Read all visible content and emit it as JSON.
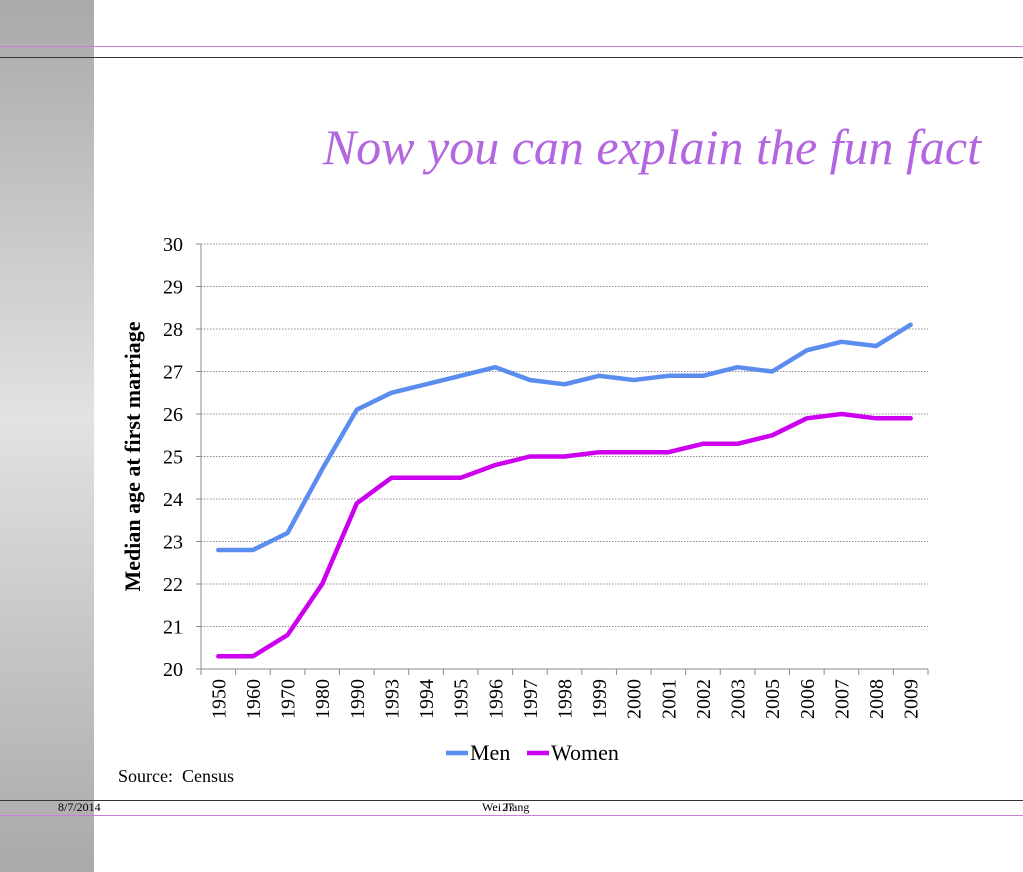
{
  "slide": {
    "title": "Now you can explain the fun fact",
    "source": "Source:  Census",
    "footer_date": "8/7/2014",
    "footer_author": "Wei Jiang",
    "footer_page": "27"
  },
  "colors": {
    "title": "#b366e0",
    "men": "#5b8def",
    "women": "#cc00ee",
    "rule_purple": "#c77fd6"
  },
  "chart_data": {
    "type": "line",
    "categories": [
      "1950",
      "1960",
      "1970",
      "1980",
      "1990",
      "1993",
      "1994",
      "1995",
      "1996",
      "1997",
      "1998",
      "1999",
      "2000",
      "2001",
      "2002",
      "2003",
      "2005",
      "2006",
      "2007",
      "2008",
      "2009"
    ],
    "series": [
      {
        "name": "Men",
        "color": "#5b8def",
        "values": [
          22.8,
          22.8,
          23.2,
          24.7,
          26.1,
          26.5,
          26.7,
          26.9,
          27.1,
          26.8,
          26.7,
          26.9,
          26.8,
          26.9,
          26.9,
          27.1,
          27.0,
          27.5,
          27.7,
          27.6,
          28.1
        ]
      },
      {
        "name": "Women",
        "color": "#cc00ee",
        "values": [
          20.3,
          20.3,
          20.8,
          22.0,
          23.9,
          24.5,
          24.5,
          24.5,
          24.8,
          25.0,
          25.0,
          25.1,
          25.1,
          25.1,
          25.3,
          25.3,
          25.5,
          25.9,
          26.0,
          25.9,
          25.9
        ]
      }
    ],
    "ylabel": "Median age at first marriage",
    "xlabel": "",
    "ylim": [
      20,
      30
    ],
    "yticks": [
      20,
      21,
      22,
      23,
      24,
      25,
      26,
      27,
      28,
      29,
      30
    ],
    "grid": true,
    "legend": "bottom"
  }
}
